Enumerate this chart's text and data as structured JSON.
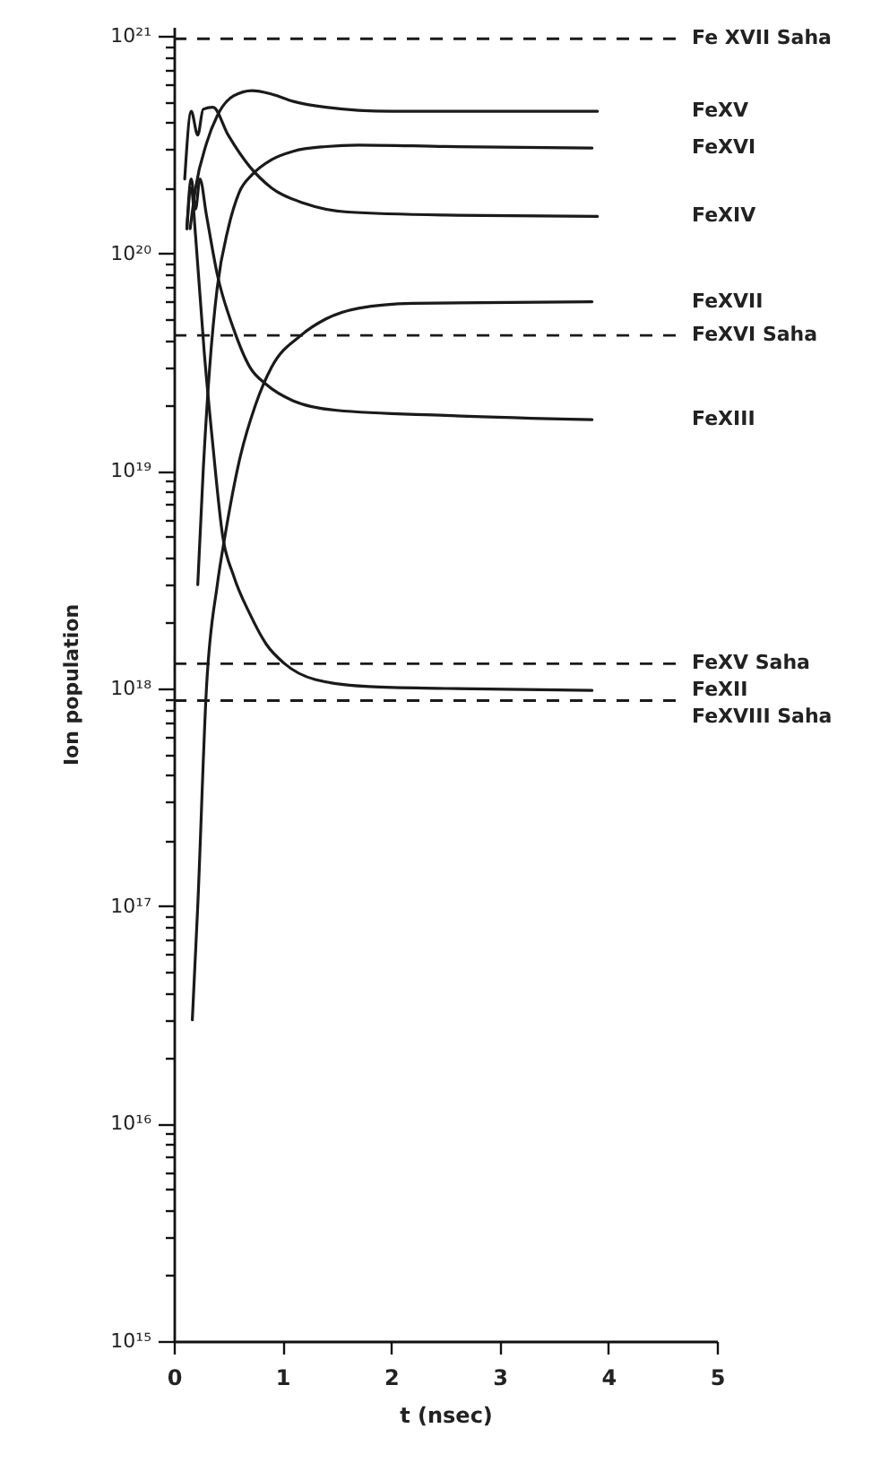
{
  "chart_data": {
    "type": "line",
    "xlabel": "t (nsec)",
    "ylabel": "Ion population",
    "log": "y",
    "xlim": [
      0,
      5
    ],
    "xticks": [
      0,
      1,
      2,
      3,
      4,
      5
    ],
    "ylim": [
      1000000000000000.0,
      1.1e+21
    ],
    "yticks": [
      {
        "value": 1000000000000000.0,
        "label": "10¹⁵"
      },
      {
        "value": 2000000000000000.0,
        "label": null
      },
      {
        "value": 3000000000000000.0,
        "label": null
      },
      {
        "value": 4000000000000000.0,
        "label": null
      },
      {
        "value": 5000000000000000.0,
        "label": null
      },
      {
        "value": 6000000000000000.0,
        "label": null
      },
      {
        "value": 7000000000000000.0,
        "label": null
      },
      {
        "value": 8000000000000000.0,
        "label": null
      },
      {
        "value": 9000000000000000.0,
        "label": null
      },
      {
        "value": 1e+16,
        "label": "10¹⁶"
      },
      {
        "value": 2e+16,
        "label": null
      },
      {
        "value": 3e+16,
        "label": null
      },
      {
        "value": 4e+16,
        "label": null
      },
      {
        "value": 5e+16,
        "label": null
      },
      {
        "value": 6e+16,
        "label": null
      },
      {
        "value": 7e+16,
        "label": null
      },
      {
        "value": 8e+16,
        "label": null
      },
      {
        "value": 9e+16,
        "label": null
      },
      {
        "value": 1e+17,
        "label": "10¹⁷"
      },
      {
        "value": 2e+17,
        "label": null
      },
      {
        "value": 3e+17,
        "label": null
      },
      {
        "value": 4e+17,
        "label": null
      },
      {
        "value": 5e+17,
        "label": null
      },
      {
        "value": 6e+17,
        "label": null
      },
      {
        "value": 7e+17,
        "label": null
      },
      {
        "value": 8e+17,
        "label": null
      },
      {
        "value": 9e+17,
        "label": null
      },
      {
        "value": 1e+18,
        "label": "10¹⁸"
      },
      {
        "value": 2e+18,
        "label": null
      },
      {
        "value": 3e+18,
        "label": null
      },
      {
        "value": 4e+18,
        "label": null
      },
      {
        "value": 5e+18,
        "label": null
      },
      {
        "value": 6e+18,
        "label": null
      },
      {
        "value": 7e+18,
        "label": null
      },
      {
        "value": 8e+18,
        "label": null
      },
      {
        "value": 9e+18,
        "label": null
      },
      {
        "value": 1e+19,
        "label": "10¹⁹"
      },
      {
        "value": 2e+19,
        "label": null
      },
      {
        "value": 3e+19,
        "label": null
      },
      {
        "value": 4e+19,
        "label": null
      },
      {
        "value": 5e+19,
        "label": null
      },
      {
        "value": 6e+19,
        "label": null
      },
      {
        "value": 7e+19,
        "label": null
      },
      {
        "value": 8e+19,
        "label": null
      },
      {
        "value": 9e+19,
        "label": null
      },
      {
        "value": 1e+20,
        "label": "10²⁰"
      },
      {
        "value": 2e+20,
        "label": null
      },
      {
        "value": 3e+20,
        "label": null
      },
      {
        "value": 4e+20,
        "label": null
      },
      {
        "value": 5e+20,
        "label": null
      },
      {
        "value": 6e+20,
        "label": null
      },
      {
        "value": 7e+20,
        "label": null
      },
      {
        "value": 8e+20,
        "label": null
      },
      {
        "value": 9e+20,
        "label": null
      },
      {
        "value": 1e+21,
        "label": "10²¹"
      }
    ],
    "grid": false,
    "legend": false,
    "marker": "none",
    "line_style": "solid",
    "series": [
      {
        "name": "FeXV",
        "color": "#1a1a1a",
        "x": [
          0.15,
          0.2,
          0.3,
          0.4,
          0.55,
          0.72,
          0.9,
          1.1,
          1.4,
          2,
          3.9
        ],
        "values": [
          1.3e+20,
          2e+20,
          3.2e+20,
          4.3e+20,
          5.3e+20,
          5.6e+20,
          5.4e+20,
          5e+20,
          4.7e+20,
          4.5e+20,
          4.5e+20
        ]
      },
      {
        "name": "FeXVI",
        "color": "#1a1a1a",
        "x": [
          0.22,
          0.27,
          0.33,
          0.4,
          0.5,
          0.6,
          0.72,
          0.9,
          1.1,
          1.4,
          1.7,
          2.5,
          3.85
        ],
        "values": [
          3e+18,
          1e+19,
          3e+19,
          7e+19,
          1.3e+20,
          1.9e+20,
          2.3e+20,
          2.7e+20,
          2.95e+20,
          3.1e+20,
          3.15e+20,
          3.1e+20,
          3.05e+20
        ]
      },
      {
        "name": "FeXIV",
        "color": "#1a1a1a",
        "x": [
          0.1,
          0.16,
          0.22,
          0.27,
          0.36,
          0.5,
          0.7,
          0.9,
          1.2,
          1.6,
          2.5,
          3.9
        ],
        "values": [
          2.2e+20,
          4.5e+20,
          3.5e+20,
          4.6e+20,
          4.7e+20,
          3.5e+20,
          2.5e+20,
          2e+20,
          1.7e+20,
          1.55e+20,
          1.5e+20,
          1.48e+20
        ]
      },
      {
        "name": "FeXVII",
        "color": "#1a1a1a",
        "x": [
          0.17,
          0.22,
          0.3,
          0.4,
          0.47,
          0.6,
          0.75,
          0.9,
          1.17,
          1.4,
          1.7,
          2.2,
          3.85
        ],
        "values": [
          3e+16,
          1e+17,
          1e+18,
          3e+18,
          5e+18,
          1.1e+19,
          2e+19,
          3e+19,
          4.2e+19,
          5e+19,
          5.6e+19,
          5.9e+19,
          6e+19
        ]
      },
      {
        "name": "FeXIII",
        "color": "#1a1a1a",
        "x": [
          0.12,
          0.16,
          0.2,
          0.24,
          0.3,
          0.4,
          0.55,
          0.7,
          0.85,
          1.1,
          1.5,
          2.5,
          3.85
        ],
        "values": [
          1.3e+20,
          2.2e+20,
          1.6e+20,
          2.2e+20,
          1.5e+20,
          8e+19,
          4.5e+19,
          3e+19,
          2.5e+19,
          2.1e+19,
          1.9e+19,
          1.8e+19,
          1.72e+19
        ]
      },
      {
        "name": "FeXII",
        "color": "#1a1a1a",
        "x": [
          0.12,
          0.16,
          0.2,
          0.28,
          0.36,
          0.45,
          0.55,
          0.7,
          0.85,
          1.02,
          1.3,
          1.8,
          2.5,
          3.85
        ],
        "values": [
          1.3e+20,
          2e+20,
          1.2e+20,
          3.5e+19,
          1.3e+19,
          5e+18,
          3.3e+18,
          2.2e+18,
          1.6e+18,
          1.3e+18,
          1.1e+18,
          1.02e+18,
          1e+18,
          9.8e+17
        ]
      }
    ],
    "ref_lines": [
      {
        "axis": "y",
        "value": 9.7e+20,
        "label": "Fe XVII  Saha",
        "line_style": "dashed",
        "color": "#1a1a1a"
      },
      {
        "axis": "y",
        "value": 4.2e+19,
        "label": "FeXVI  Saha",
        "line_style": "dashed",
        "color": "#1a1a1a"
      },
      {
        "axis": "y",
        "value": 1.3e+18,
        "label": "FeXV  Saha",
        "line_style": "dashed",
        "color": "#1a1a1a"
      },
      {
        "axis": "y",
        "value": 8.8e+17,
        "label": "FeXVIII  Saha",
        "line_style": "dashed",
        "color": "#1a1a1a"
      }
    ]
  }
}
